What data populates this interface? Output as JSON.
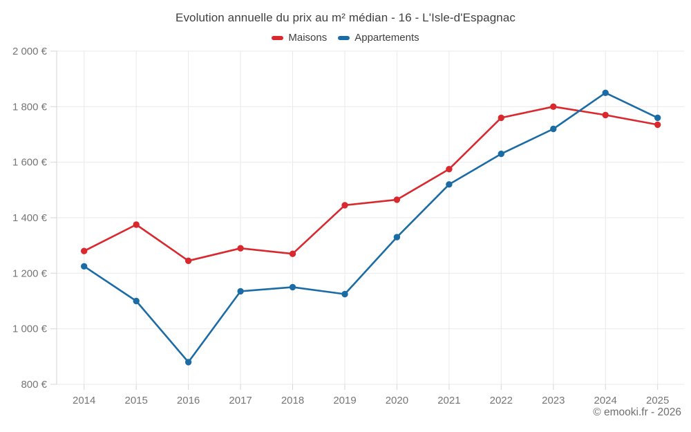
{
  "attribution": "© emooki.fr - 2026",
  "colors": {
    "maisons": "#d9282e",
    "appartements": "#1b6ca5",
    "gridline": "#e9e9e9",
    "axis": "#d6d6d6",
    "tick_label": "#757575",
    "title": "#3f3f3f",
    "attribution": "#6e6e6e"
  },
  "chart_data": {
    "type": "line",
    "title": "Evolution annuelle du prix au m² médian - 16 - L'Isle-d'Espagnac",
    "xlabel": "",
    "ylabel": "",
    "x": [
      2014,
      2015,
      2016,
      2017,
      2018,
      2019,
      2020,
      2021,
      2022,
      2023,
      2024,
      2025
    ],
    "series": [
      {
        "name": "Maisons",
        "color": "#d9282e",
        "values": [
          1280,
          1375,
          1245,
          1290,
          1270,
          1445,
          1465,
          1575,
          1760,
          1800,
          1770,
          1735
        ]
      },
      {
        "name": "Appartements",
        "color": "#1b6ca5",
        "values": [
          1225,
          1100,
          880,
          1135,
          1150,
          1125,
          1330,
          1520,
          1630,
          1720,
          1850,
          1760
        ]
      }
    ],
    "ylim": [
      800,
      2000
    ],
    "ytick_interval": 200,
    "yticks": [
      {
        "value": 800,
        "label": "800 €"
      },
      {
        "value": 1000,
        "label": "1 000 €"
      },
      {
        "value": 1200,
        "label": "1 200 €"
      },
      {
        "value": 1400,
        "label": "1 400 €"
      },
      {
        "value": 1600,
        "label": "1 600 €"
      },
      {
        "value": 1800,
        "label": "1 800 €"
      },
      {
        "value": 2000,
        "label": "2 000 €"
      }
    ],
    "grid": true,
    "legend_position": "top"
  }
}
